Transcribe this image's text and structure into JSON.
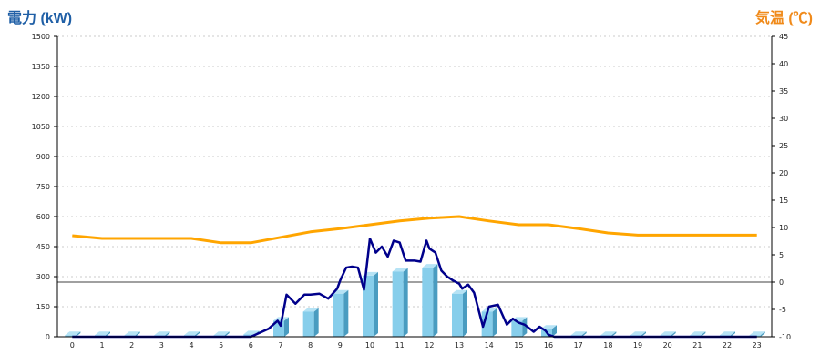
{
  "chart_data": {
    "type": "bar",
    "title": "",
    "ylabel_left": "電力 (kW)",
    "ylabel_right": "気温 (℃)",
    "colors": {
      "left_label": "#1f5fa6",
      "right_label": "#f08a1a",
      "bar": "#87ceeb",
      "bar_side": "#4a9cc0",
      "bar_top": "#b6e3f5",
      "power_line": "#00008b",
      "temperature_line": "#ffa500",
      "grid": "#bbbbbb"
    },
    "categories": [
      "0",
      "1",
      "2",
      "3",
      "4",
      "5",
      "6",
      "7",
      "8",
      "9",
      "10",
      "11",
      "12",
      "13",
      "14",
      "15",
      "16",
      "17",
      "18",
      "19",
      "20",
      "21",
      "22",
      "23"
    ],
    "left_axis": {
      "ylim": [
        0,
        1500
      ],
      "ticks": [
        "0",
        "150",
        "300",
        "450",
        "600",
        "750",
        "900",
        "1050",
        "1200",
        "1350",
        "1500"
      ]
    },
    "right_axis": {
      "ylim": [
        -10,
        45
      ],
      "ticks": [
        "-10",
        "-5",
        "0",
        "5",
        "10",
        "15",
        "20",
        "25",
        "30",
        "35",
        "40",
        "45"
      ]
    },
    "grid": true,
    "series": [
      {
        "type": "bar",
        "axis": "left",
        "values": [
          8,
          8,
          8,
          8,
          8,
          8,
          12,
          80,
          125,
          215,
          305,
          325,
          345,
          215,
          125,
          80,
          40,
          8,
          8,
          8,
          8,
          8,
          8,
          8
        ]
      },
      {
        "type": "line",
        "axis": "left",
        "x": [
          0,
          1,
          2,
          3,
          4,
          5,
          6,
          6.3,
          6.6,
          6.9,
          7,
          7.2,
          7.5,
          7.8,
          8,
          8.3,
          8.6,
          8.9,
          9,
          9.2,
          9.4,
          9.6,
          9.8,
          10,
          10.2,
          10.4,
          10.6,
          10.8,
          11,
          11.2,
          11.5,
          11.7,
          11.9,
          12,
          12.2,
          12.4,
          12.6,
          12.8,
          13,
          13.1,
          13.3,
          13.5,
          13.8,
          14,
          14.3,
          14.6,
          14.8,
          15,
          15.2,
          15.5,
          15.7,
          15.9,
          16,
          16.2,
          17,
          18,
          19,
          20,
          21,
          22,
          23
        ],
        "values": [
          0,
          0,
          0,
          0,
          0,
          0,
          0,
          20,
          40,
          80,
          55,
          210,
          165,
          210,
          210,
          215,
          190,
          240,
          280,
          345,
          350,
          345,
          235,
          490,
          420,
          450,
          400,
          480,
          470,
          380,
          380,
          375,
          480,
          440,
          420,
          330,
          300,
          280,
          265,
          240,
          260,
          220,
          50,
          150,
          160,
          60,
          90,
          70,
          60,
          25,
          50,
          30,
          10,
          0,
          0,
          0,
          0,
          0,
          0,
          0,
          0
        ]
      },
      {
        "type": "line",
        "axis": "right",
        "values": [
          8.5,
          8.0,
          8.0,
          8.0,
          8.0,
          7.2,
          7.2,
          8.2,
          9.2,
          9.8,
          10.5,
          11.2,
          11.7,
          12.0,
          11.2,
          10.5,
          10.5,
          9.8,
          9.0,
          8.6,
          8.6,
          8.6,
          8.6,
          8.6
        ]
      }
    ]
  }
}
